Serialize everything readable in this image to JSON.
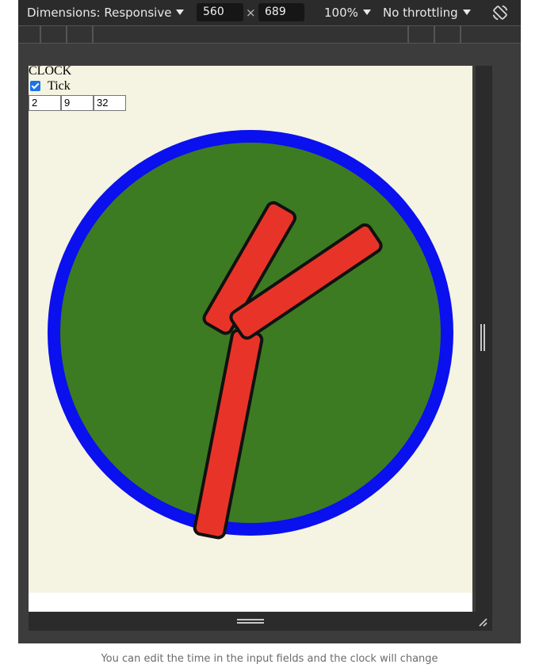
{
  "toolbar": {
    "dimensions_label": "Dimensions: Responsive",
    "width_value": "560",
    "times_sign": "×",
    "height_value": "689",
    "zoom_label": "100%",
    "throttling_label": "No throttling",
    "rotate_icon": "rotate-icon"
  },
  "page": {
    "heading": "CLOCK",
    "tick_label": "Tick",
    "tick_checked": true,
    "hours_value": "2",
    "minutes_value": "9",
    "seconds_value": "32"
  },
  "clock": {
    "face_color": "#3d7b22",
    "rim_color": "#0a10ee",
    "hand_color": "#e83428",
    "hand_outline_color": "#111111",
    "background_color": "#f5f3e1"
  },
  "caption": "You can edit the time in the input fields and the clock will change"
}
